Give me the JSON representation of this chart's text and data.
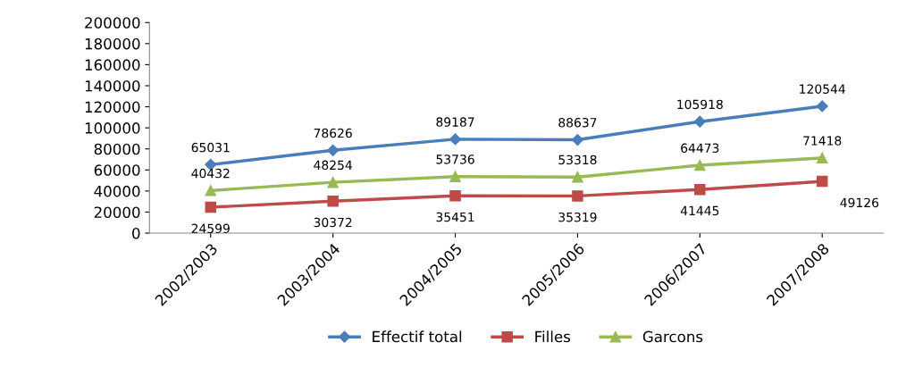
{
  "chart_data": {
    "type": "line",
    "categories": [
      "2002/2003",
      "2003/2004",
      "2004/2005",
      "2005/2006",
      "2006/2007",
      "2007/2008"
    ],
    "series": [
      {
        "name": "Effectif total",
        "color": "#4a7ebb",
        "marker": "diamond",
        "values": [
          65031,
          78626,
          89187,
          88637,
          105918,
          120544
        ]
      },
      {
        "name": "Filles",
        "color": "#be4b48",
        "marker": "square",
        "values": [
          24599,
          30372,
          35451,
          35319,
          41445,
          49126
        ]
      },
      {
        "name": "Garcons",
        "color": "#98b954",
        "marker": "triangle",
        "values": [
          40432,
          48254,
          53736,
          53318,
          64473,
          71418
        ]
      }
    ],
    "ylim": [
      0,
      200000
    ],
    "yticks": [
      0,
      20000,
      40000,
      60000,
      80000,
      100000,
      120000,
      140000,
      160000,
      180000,
      200000
    ],
    "grid": false,
    "legend": "bottom",
    "data_labels": true
  }
}
